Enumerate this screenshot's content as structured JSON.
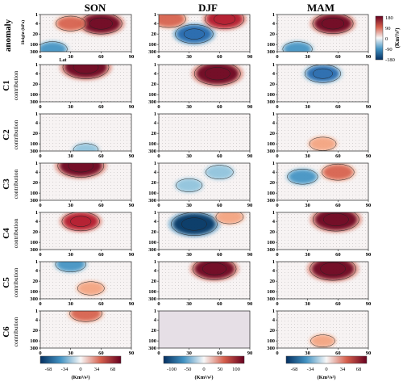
{
  "columns": [
    "SON",
    "DJF",
    "MAM"
  ],
  "rows": [
    {
      "label": "anomaly",
      "sublabel": ""
    },
    {
      "label": "C1",
      "sublabel": "contribution"
    },
    {
      "label": "C2",
      "sublabel": "contribution"
    },
    {
      "label": "C3",
      "sublabel": "contribution"
    },
    {
      "label": "C4",
      "sublabel": "contribution"
    },
    {
      "label": "C5",
      "sublabel": "contribution"
    },
    {
      "label": "C6",
      "sublabel": "contribution"
    }
  ],
  "axes": {
    "x_ticks": [
      "0",
      "30",
      "60",
      "90"
    ],
    "y_ticks": [
      "1",
      "4",
      "20",
      "100",
      "300"
    ],
    "xlabel": "Lat",
    "ylabel": "Height (hPa)"
  },
  "colorbars": {
    "anomaly": {
      "ticks": [
        "180",
        "90",
        "0",
        "-90",
        "-180"
      ],
      "unit": "(Km³/s²)",
      "colors": [
        "#67001f",
        "#d6604d",
        "#f7f7f7",
        "#4393c3",
        "#053061"
      ]
    },
    "bottom": [
      {
        "ticks": [
          "-68",
          "-34",
          "0",
          "34",
          "68"
        ],
        "unit": "(Km³/s²)"
      },
      {
        "ticks": [
          "-100",
          "-50",
          "0",
          "50",
          "100"
        ],
        "unit": "(Km³/s²)"
      },
      {
        "ticks": [
          "-68",
          "-34",
          "0",
          "34",
          "68"
        ],
        "unit": "(Km³/s²)"
      }
    ]
  },
  "colors": {
    "red": "#b2182b",
    "dark_red": "#67001f",
    "blue": "#2166ac",
    "dark_blue": "#053061",
    "neutral": "#f7f7f7"
  },
  "chart_data": {
    "type": "heatmap",
    "x_range": [
      0,
      90
    ],
    "y_range_hPa": [
      1,
      300
    ],
    "y_scale": "log (inverted)",
    "panels": [
      {
        "row": "anomaly",
        "column": "SON",
        "blobs": [
          {
            "lat": 60,
            "hPa": 4,
            "value": 150
          },
          {
            "lat": 30,
            "hPa": 4,
            "value": 60
          },
          {
            "lat": 12,
            "hPa": 200,
            "value": -60
          }
        ]
      },
      {
        "row": "anomaly",
        "column": "DJF",
        "blobs": [
          {
            "lat": 35,
            "hPa": 20,
            "value": -120
          },
          {
            "lat": 65,
            "hPa": 2,
            "value": 130
          },
          {
            "lat": 10,
            "hPa": 2,
            "value": 90
          }
        ]
      },
      {
        "row": "anomaly",
        "column": "MAM",
        "blobs": [
          {
            "lat": 55,
            "hPa": 4,
            "value": 140
          },
          {
            "lat": 20,
            "hPa": 200,
            "value": -60
          }
        ]
      },
      {
        "row": "C1",
        "column": "SON",
        "blobs": [
          {
            "lat": 45,
            "hPa": 1.5,
            "value": 68
          }
        ]
      },
      {
        "row": "C1",
        "column": "DJF",
        "blobs": [
          {
            "lat": 58,
            "hPa": 4,
            "value": 100
          }
        ]
      },
      {
        "row": "C1",
        "column": "MAM",
        "blobs": [
          {
            "lat": 45,
            "hPa": 4,
            "value": -40
          }
        ]
      },
      {
        "row": "C2",
        "column": "SON",
        "blobs": [
          {
            "lat": 45,
            "hPa": 250,
            "value": -10
          }
        ]
      },
      {
        "row": "C2",
        "column": "DJF",
        "blobs": []
      },
      {
        "row": "C2",
        "column": "MAM",
        "blobs": [
          {
            "lat": 45,
            "hPa": 100,
            "value": 15
          }
        ]
      },
      {
        "row": "C3",
        "column": "SON",
        "blobs": [
          {
            "lat": 40,
            "hPa": 1.5,
            "value": 68
          }
        ]
      },
      {
        "row": "C3",
        "column": "DJF",
        "blobs": [
          {
            "lat": 60,
            "hPa": 4,
            "value": -25
          },
          {
            "lat": 30,
            "hPa": 30,
            "value": -20
          }
        ]
      },
      {
        "row": "C3",
        "column": "MAM",
        "blobs": [
          {
            "lat": 60,
            "hPa": 4,
            "value": 30
          },
          {
            "lat": 25,
            "hPa": 8,
            "value": -25
          }
        ]
      },
      {
        "row": "C4",
        "column": "SON",
        "blobs": [
          {
            "lat": 40,
            "hPa": 4,
            "value": 45
          }
        ]
      },
      {
        "row": "C4",
        "column": "DJF",
        "blobs": [
          {
            "lat": 35,
            "hPa": 6,
            "value": -100
          },
          {
            "lat": 70,
            "hPa": 2,
            "value": 25
          }
        ]
      },
      {
        "row": "C4",
        "column": "MAM",
        "blobs": [
          {
            "lat": 58,
            "hPa": 3,
            "value": 68
          }
        ]
      },
      {
        "row": "C5",
        "column": "SON",
        "blobs": [
          {
            "lat": 30,
            "hPa": 1.5,
            "value": -25
          },
          {
            "lat": 50,
            "hPa": 60,
            "value": 15
          }
        ]
      },
      {
        "row": "C5",
        "column": "DJF",
        "blobs": [
          {
            "lat": 55,
            "hPa": 3,
            "value": 90
          }
        ]
      },
      {
        "row": "C5",
        "column": "MAM",
        "blobs": [
          {
            "lat": 55,
            "hPa": 3,
            "value": 68
          }
        ]
      },
      {
        "row": "C6",
        "column": "SON",
        "blobs": [
          {
            "lat": 45,
            "hPa": 1.5,
            "value": 30
          }
        ]
      },
      {
        "row": "C6",
        "column": "DJF",
        "blobs": []
      },
      {
        "row": "C6",
        "column": "MAM",
        "blobs": [
          {
            "lat": 45,
            "hPa": 100,
            "value": 8
          }
        ]
      }
    ]
  }
}
